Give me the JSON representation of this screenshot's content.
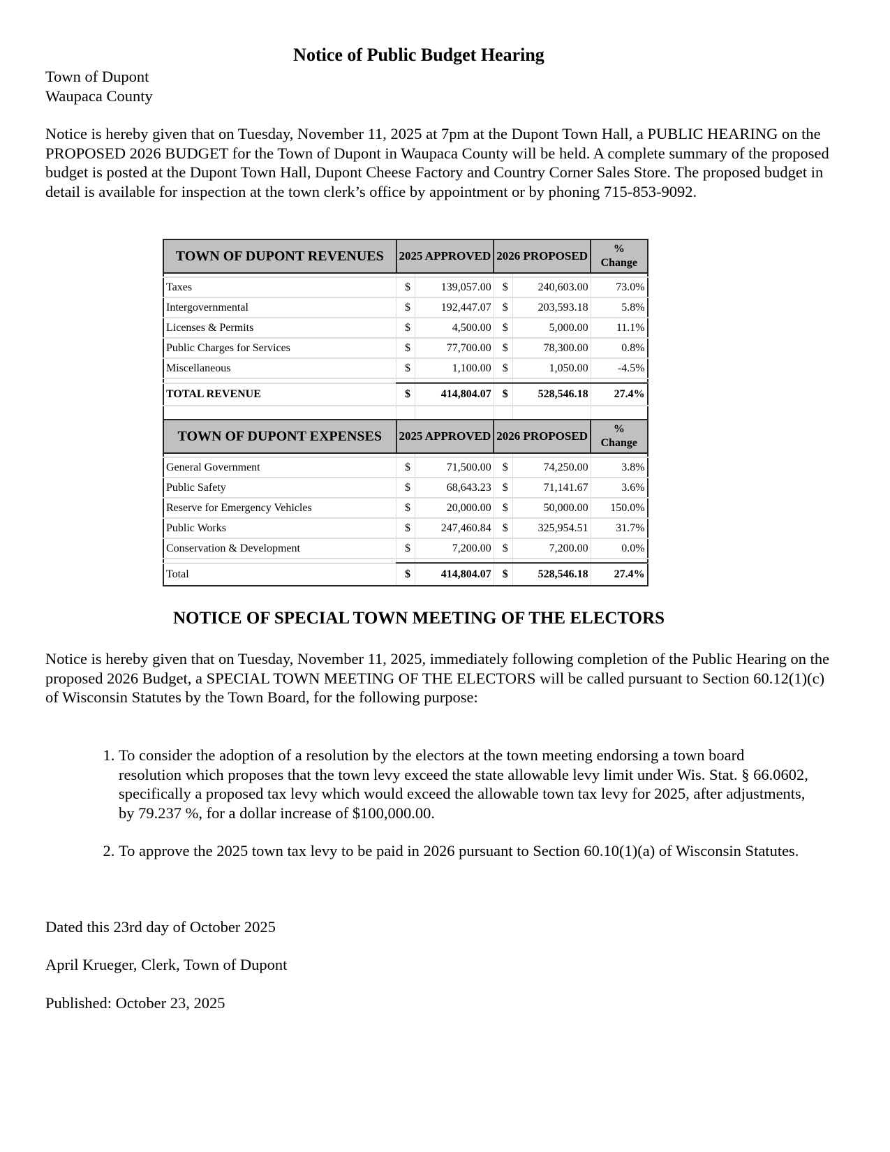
{
  "title": "Notice of Public Budget Hearing",
  "town": "Town of Dupont",
  "county": "Waupaca County",
  "intro": "Notice is hereby given that on Tuesday, November 11, 2025 at 7pm at the Dupont Town Hall, a PUBLIC HEARING on the PROPOSED 2026 BUDGET for the Town of Dupont in Waupaca County will be held. A complete summary of the proposed budget is posted at the Dupont Town Hall, Dupont Cheese Factory and Country Corner Sales Store. The proposed budget in detail is available for inspection at the town clerk’s office by appointment or by phoning 715-853-9092.",
  "revenues": {
    "header": [
      "TOWN OF DUPONT REVENUES",
      "2025 APPROVED",
      "2026 PROPOSED",
      "%",
      "Change"
    ],
    "rows": [
      {
        "label": "Taxes",
        "c": "$",
        "a": "139,057.00",
        "c2": "$",
        "b": "240,603.00",
        "pct": "73.0%"
      },
      {
        "label": "Intergovernmental",
        "c": "$",
        "a": "192,447.07",
        "c2": "$",
        "b": "203,593.18",
        "pct": "5.8%"
      },
      {
        "label": "Licenses & Permits",
        "c": "$",
        "a": "4,500.00",
        "c2": "$",
        "b": "5,000.00",
        "pct": "11.1%"
      },
      {
        "label": "Public Charges for Services",
        "c": "$",
        "a": "77,700.00",
        "c2": "$",
        "b": "78,300.00",
        "pct": "0.8%"
      },
      {
        "label": "Miscellaneous",
        "c": "$",
        "a": "1,100.00",
        "c2": "$",
        "b": "1,050.00",
        "pct": "-4.5%"
      }
    ],
    "total": {
      "label": "TOTAL REVENUE",
      "c": "$",
      "a": "414,804.07",
      "c2": "$",
      "b": "528,546.18",
      "pct": "27.4%"
    }
  },
  "expenses": {
    "header": [
      "TOWN OF DUPONT EXPENSES",
      "2025 APPROVED",
      "2026 PROPOSED",
      "%",
      "Change"
    ],
    "rows": [
      {
        "label": "General Government",
        "c": "$",
        "a": "71,500.00",
        "c2": "$",
        "b": "74,250.00",
        "pct": "3.8%"
      },
      {
        "label": "Public Safety",
        "c": "$",
        "a": "68,643.23",
        "c2": "$",
        "b": "71,141.67",
        "pct": "3.6%"
      },
      {
        "label": "Reserve for Emergency Vehicles",
        "c": "$",
        "a": "20,000.00",
        "c2": "$",
        "b": "50,000.00",
        "pct": "150.0%"
      },
      {
        "label": "Public Works",
        "c": "$",
        "a": "247,460.84",
        "c2": "$",
        "b": "325,954.51",
        "pct": "31.7%"
      },
      {
        "label": "Conservation & Development",
        "c": "$",
        "a": "7,200.00",
        "c2": "$",
        "b": "7,200.00",
        "pct": "0.0%"
      }
    ],
    "total": {
      "label": "Total",
      "c": "$",
      "a": "414,804.07",
      "c2": "$",
      "b": "528,546.18",
      "pct": "27.4%"
    }
  },
  "meeting_title": "NOTICE OF SPECIAL TOWN MEETING OF THE ELECTORS",
  "meeting_text": "Notice is hereby given that on Tuesday, November 11, 2025, immediately following completion of the Public Hearing on the proposed 2026 Budget, a SPECIAL TOWN MEETING OF THE ELECTORS will be called pursuant to Section 60.12(1)(c) of Wisconsin Statutes by the Town Board, for the following purpose:",
  "items": [
    "To consider the adoption of a resolution by the electors at the town meeting endorsing a town board resolution which proposes that the town levy exceed the state allowable levy limit under Wis. Stat. § 66.0602, specifically a proposed tax levy which would exceed the allowable town tax levy for 2025, after adjustments, by 79.237 %, for a dollar increase of $100,000.00.",
    "To approve the 2025 town tax levy to be paid in 2026 pursuant to Section 60.10(1)(a) of Wisconsin Statutes."
  ],
  "dated": "Dated this 23rd day of October 2025",
  "signature": "April Krueger, Clerk, Town of Dupont",
  "published": "Published: October 23, 2025"
}
